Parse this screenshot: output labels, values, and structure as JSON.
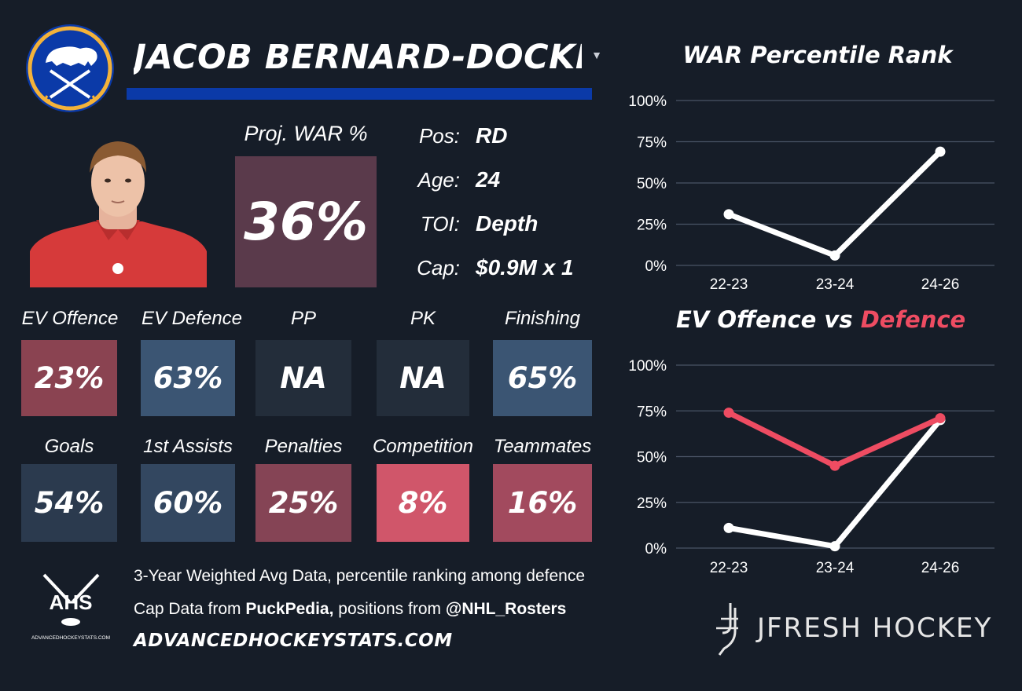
{
  "player": {
    "name": "JACOB BERNARD-DOCKER",
    "proj_war_label": "Proj. WAR %",
    "proj_war_value": "36%"
  },
  "info": [
    {
      "label": "Pos:",
      "value": "RD"
    },
    {
      "label": "Age:",
      "value": "24"
    },
    {
      "label": "TOI:",
      "value": "Depth"
    },
    {
      "label": "Cap:",
      "value": "$0.9M x 1"
    }
  ],
  "stats_row1": [
    {
      "label": "EV Offence",
      "value": "23%",
      "color": "#8a4351"
    },
    {
      "label": "EV Defence",
      "value": "63%",
      "color": "#3b5573"
    },
    {
      "label": "PP",
      "value": "NA",
      "color": "#232d3a"
    },
    {
      "label": "PK",
      "value": "NA",
      "color": "#232d3a"
    },
    {
      "label": "Finishing",
      "value": "65%",
      "color": "#3b5573"
    }
  ],
  "stats_row2": [
    {
      "label": "Goals",
      "value": "54%",
      "color": "#2b3a4e"
    },
    {
      "label": "1st Assists",
      "value": "60%",
      "color": "#334760"
    },
    {
      "label": "Penalties",
      "value": "25%",
      "color": "#854455"
    },
    {
      "label": "Competition",
      "value": "8%",
      "color": "#d0566a"
    },
    {
      "label": "Teammates",
      "value": "16%",
      "color": "#a24a5e"
    }
  ],
  "footer": {
    "ahs_logo_text": "AHS",
    "ahs_logo_url": "ADVANCEDHOCKEYSTATS.COM",
    "line1": "3-Year Weighted Avg Data, percentile ranking among defence",
    "line2_prefix": "Cap Data from ",
    "line2_source1": "PuckPedia,",
    "line2_mid": " positions from ",
    "line2_source2": "@NHL_Rosters",
    "url": "ADVANCEDHOCKEYSTATS.COM",
    "brand": "JFRESH HOCKEY"
  },
  "colors": {
    "background": "#161d28",
    "name_bar": "#0b3aa8",
    "accent_red": "#ee4c62",
    "line_white": "#ffffff",
    "grid": "#4a5466"
  },
  "chart_data": [
    {
      "type": "line",
      "title": "WAR Percentile Rank",
      "categories": [
        "22-23",
        "23-24",
        "24-26"
      ],
      "series": [
        {
          "values": [
            31,
            6,
            69
          ],
          "color": "#ffffff"
        }
      ],
      "yticks": [
        "0%",
        "25%",
        "50%",
        "75%",
        "100%"
      ],
      "ylim": [
        0,
        100
      ],
      "grid": true
    },
    {
      "type": "line",
      "title_parts": [
        "EV Offence vs ",
        "Defence"
      ],
      "categories": [
        "22-23",
        "23-24",
        "24-26"
      ],
      "series": [
        {
          "name": "EV Offence",
          "values": [
            11,
            1,
            70
          ],
          "color": "#ffffff"
        },
        {
          "name": "Defence",
          "values": [
            74,
            45,
            71
          ],
          "color": "#ee4c62"
        }
      ],
      "yticks": [
        "0%",
        "25%",
        "50%",
        "75%",
        "100%"
      ],
      "ylim": [
        0,
        100
      ],
      "grid": true
    }
  ]
}
